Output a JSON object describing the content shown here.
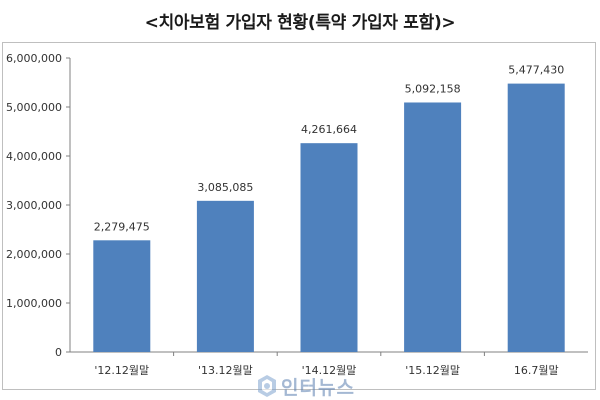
{
  "chart_data": {
    "type": "bar",
    "title": "<치아보험 가입자 현황(특약 가입자 포함)>",
    "categories": [
      "'12.12월말",
      "'13.12월말",
      "'14.12월말",
      "'15.12월말",
      "16.7월말"
    ],
    "values": [
      2279475,
      3085085,
      4261664,
      5092158,
      5477430
    ],
    "value_labels": [
      "2,279,475",
      "3,085,085",
      "4,261,664",
      "5,092,158",
      "5,477,430"
    ],
    "ylim": [
      0,
      6000000
    ],
    "yticks": [
      0,
      1000000,
      2000000,
      3000000,
      4000000,
      5000000,
      6000000
    ],
    "ytick_labels": [
      "0",
      "1,000,000",
      "2,000,000",
      "3,000,000",
      "4,000,000",
      "5,000,000",
      "6,000,000"
    ],
    "xlabel": "",
    "ylabel": "",
    "grid": false,
    "bar_color": "#4f81bd"
  },
  "watermark": {
    "text": "인터뉴스",
    "icon": "watermark-logo-icon",
    "color": "#5a7fb0"
  }
}
